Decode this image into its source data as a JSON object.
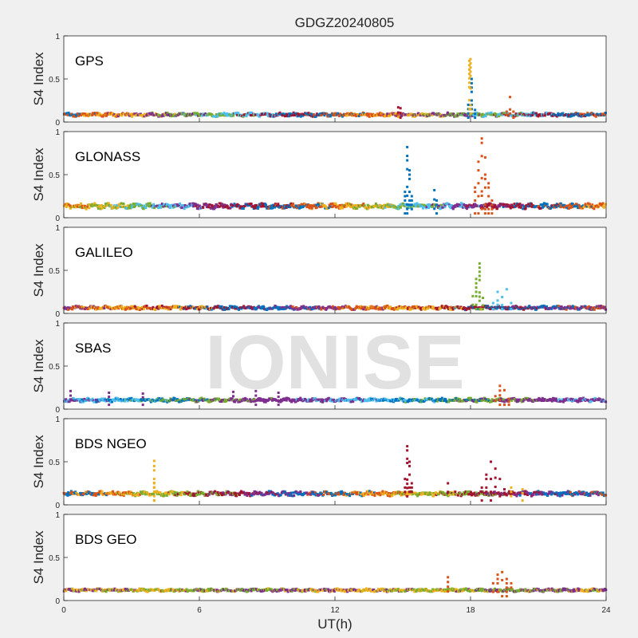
{
  "title": "GDGZ20240805",
  "watermark": "IONISE",
  "chart_data": {
    "type": "scatter",
    "title": "GDGZ20240805",
    "xlabel": "UT(h)",
    "ylabel": "S4 Index",
    "xlim": [
      0,
      24
    ],
    "ylim": [
      0,
      1
    ],
    "xticks": [
      "0",
      "6",
      "12",
      "18",
      "24"
    ],
    "yticks": [
      "0",
      "0.5",
      "1"
    ],
    "colors": [
      "#0072BD",
      "#D95319",
      "#EDB120",
      "#7E2F8E",
      "#77AC30",
      "#4DBEEE",
      "#A2142F"
    ],
    "panels": [
      {
        "label": "GPS",
        "baseline": [
          0.06,
          0.11
        ],
        "palette": [
          0,
          1,
          2,
          3,
          4,
          5,
          6
        ],
        "spikes": [
          {
            "series": 0,
            "x": [
              17.9,
              18.05,
              18.2
            ],
            "y": [
              0.2,
              0.5,
              0.14
            ]
          },
          {
            "series": 2,
            "x": [
              17.95,
              18.0
            ],
            "y": [
              0.71,
              0.73
            ]
          },
          {
            "series": 1,
            "x": [
              19.6,
              19.75,
              19.9
            ],
            "y": [
              0.12,
              0.29,
              0.12
            ]
          },
          {
            "series": 6,
            "x": [
              14.8,
              14.9
            ],
            "y": [
              0.17,
              0.16
            ]
          }
        ]
      },
      {
        "label": "GLONASS",
        "baseline": [
          0.1,
          0.17
        ],
        "palette": [
          1,
          2,
          4,
          5,
          3,
          6,
          0
        ],
        "spikes": [
          {
            "series": 0,
            "x": [
              15.1,
              15.2,
              15.3,
              15.4
            ],
            "y": [
              0.3,
              0.82,
              0.55,
              0.25
            ]
          },
          {
            "series": 0,
            "x": [
              16.4,
              16.5
            ],
            "y": [
              0.32,
              0.2
            ]
          },
          {
            "series": 1,
            "x": [
              18.2,
              18.35,
              18.5,
              18.65,
              18.8,
              18.95
            ],
            "y": [
              0.35,
              0.65,
              0.92,
              0.7,
              0.4,
              0.2
            ]
          }
        ]
      },
      {
        "label": "GALILEO",
        "baseline": [
          0.04,
          0.09
        ],
        "palette": [
          3,
          1,
          2,
          6,
          0
        ],
        "spikes": [
          {
            "series": 4,
            "x": [
              18.1,
              18.25,
              18.4,
              18.55
            ],
            "y": [
              0.2,
              0.4,
              0.58,
              0.18
            ]
          },
          {
            "series": 5,
            "x": [
              19.0,
              19.2,
              19.4,
              19.6,
              19.8
            ],
            "y": [
              0.12,
              0.25,
              0.19,
              0.28,
              0.12
            ]
          }
        ]
      },
      {
        "label": "SBAS",
        "baseline": [
          0.08,
          0.13
        ],
        "palette": [
          3,
          5,
          0,
          4,
          3
        ],
        "spikes": [
          {
            "series": 1,
            "x": [
              19.1,
              19.3,
              19.5,
              19.7
            ],
            "y": [
              0.15,
              0.27,
              0.22,
              0.12
            ]
          },
          {
            "series": 3,
            "x": [
              0.3,
              2.0,
              3.5,
              7.5,
              8.5,
              9.5
            ],
            "y": [
              0.21,
              0.19,
              0.18,
              0.2,
              0.21,
              0.19
            ]
          }
        ]
      },
      {
        "label": "BDS NGEO",
        "baseline": [
          0.1,
          0.16
        ],
        "palette": [
          0,
          1,
          2,
          4,
          6,
          3
        ],
        "spikes": [
          {
            "series": 2,
            "x": [
              4.0,
              4.0
            ],
            "y": [
              0.45,
              0.51
            ]
          },
          {
            "series": 6,
            "x": [
              15.1,
              15.2,
              15.3,
              15.4
            ],
            "y": [
              0.3,
              0.68,
              0.5,
              0.25
            ]
          },
          {
            "series": 6,
            "x": [
              18.5,
              18.7,
              18.9,
              19.1,
              19.3,
              19.5
            ],
            "y": [
              0.2,
              0.35,
              0.5,
              0.42,
              0.3,
              0.18
            ]
          },
          {
            "series": 6,
            "x": [
              17.0
            ],
            "y": [
              0.25
            ]
          },
          {
            "series": 2,
            "x": [
              19.8,
              20.3
            ],
            "y": [
              0.2,
              0.18
            ]
          }
        ]
      },
      {
        "label": "BDS GEO",
        "baseline": [
          0.1,
          0.14
        ],
        "palette": [
          3,
          2,
          4
        ],
        "spikes": [
          {
            "series": 1,
            "x": [
              17.0
            ],
            "y": [
              0.27
            ]
          },
          {
            "series": 1,
            "x": [
              19.0,
              19.2,
              19.4,
              19.6,
              19.8
            ],
            "y": [
              0.2,
              0.3,
              0.33,
              0.25,
              0.2
            ]
          }
        ]
      }
    ]
  }
}
